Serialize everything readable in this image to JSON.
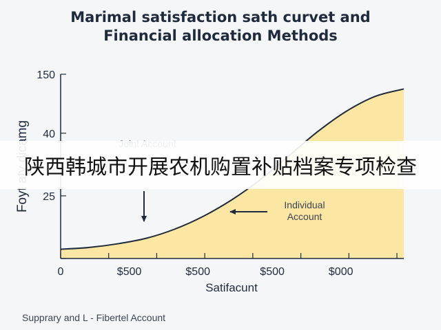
{
  "title_line1": "Marimal satisfaction sath curvet and",
  "title_line2": "Financial allocation Methods",
  "banner_text": "陕西韩城市开展农机购置补贴档案专项检查",
  "footnote": "Supprary and L - Fibertel Account",
  "colors": {
    "fill": "#fce6a4",
    "line": "#1f2a3c",
    "background": "#f4f6f8"
  },
  "chart_data": {
    "type": "area",
    "title": "Marimal satisfaction sath curvet and Financial allocation Methods",
    "xlabel": "Satifacunt",
    "ylabel": "Foyt aty dicamg",
    "x_tick_labels": [
      "0",
      "$500",
      "$500",
      "$500",
      "$000"
    ],
    "y_tick_labels": [
      "150",
      "40",
      "25"
    ],
    "series": [
      {
        "name": "Individual Account",
        "x": [
          0,
          0.5,
          1,
          1.5,
          2,
          2.5,
          3,
          3.5,
          4,
          4.5,
          5,
          5.5,
          6
        ],
        "values": [
          5,
          6,
          8,
          11,
          16,
          23,
          32,
          43,
          56,
          69,
          80,
          88,
          92
        ]
      }
    ],
    "annotations": [
      {
        "text": "Joint Account",
        "x": 1.6,
        "y": 13
      },
      {
        "text": "Individual Account",
        "x": 3.4,
        "y": 33
      }
    ],
    "xlim": [
      0,
      6
    ],
    "ylim": [
      0,
      100
    ],
    "grid": false,
    "legend": "none"
  }
}
